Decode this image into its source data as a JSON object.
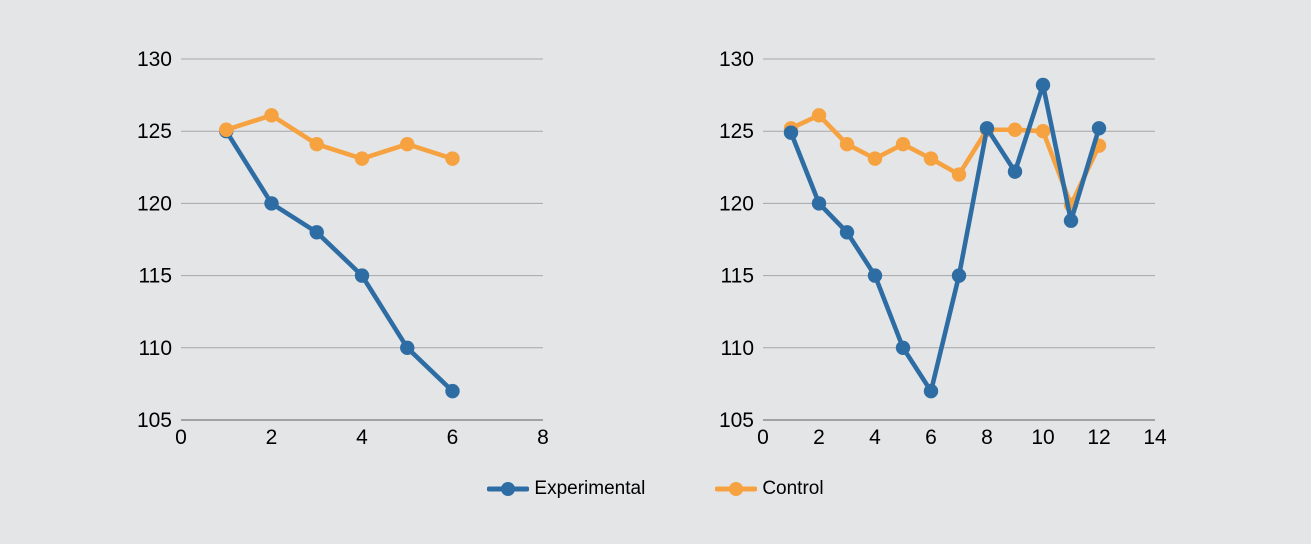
{
  "page": {
    "background": "#e4e5e7",
    "grid_color": "#a6a6a6",
    "axis_line_color": "#8c8c8c",
    "tick_text_color": "#000000"
  },
  "legend": {
    "items": [
      {
        "label": "Experimental",
        "color": "#2e6da4"
      },
      {
        "label": "Control",
        "color": "#f6a240"
      }
    ]
  },
  "chart_data": [
    {
      "id": "left-chart",
      "type": "line",
      "title": "",
      "xlabel": "",
      "ylabel": "",
      "xlim": [
        0,
        8
      ],
      "ylim": [
        105,
        130
      ],
      "x_ticks": [
        "0",
        "2",
        "4",
        "6",
        "8"
      ],
      "y_ticks": [
        "105",
        "110",
        "115",
        "120",
        "125",
        "130"
      ],
      "grid": true,
      "legend_position": "bottom",
      "x": [
        1,
        2,
        3,
        4,
        5,
        6
      ],
      "series": [
        {
          "name": "Experimental",
          "color": "#2e6da4",
          "values": [
            125,
            120,
            118,
            115,
            110,
            107
          ]
        },
        {
          "name": "Control",
          "color": "#f6a240",
          "values": [
            125.1,
            126.1,
            124.1,
            123.1,
            124.1,
            123.1
          ]
        }
      ]
    },
    {
      "id": "right-chart",
      "type": "line",
      "title": "",
      "xlabel": "",
      "ylabel": "",
      "xlim": [
        0,
        14
      ],
      "ylim": [
        105,
        130
      ],
      "x_ticks": [
        "0",
        "2",
        "4",
        "6",
        "8",
        "10",
        "12",
        "14"
      ],
      "y_ticks": [
        "105",
        "110",
        "115",
        "120",
        "125",
        "130"
      ],
      "grid": true,
      "legend_position": "bottom",
      "x": [
        1,
        2,
        3,
        4,
        5,
        6,
        7,
        8,
        9,
        10,
        11,
        12
      ],
      "series": [
        {
          "name": "Control",
          "color": "#f6a240",
          "values": [
            125.2,
            126.1,
            124.1,
            123.1,
            124.1,
            123.1,
            122,
            125.1,
            125.1,
            125,
            119.9,
            124
          ]
        },
        {
          "name": "Experimental",
          "color": "#2e6da4",
          "values": [
            124.9,
            120,
            118,
            115,
            110,
            107,
            115,
            125.2,
            122.2,
            128.2,
            118.8,
            125.2
          ]
        }
      ]
    }
  ]
}
